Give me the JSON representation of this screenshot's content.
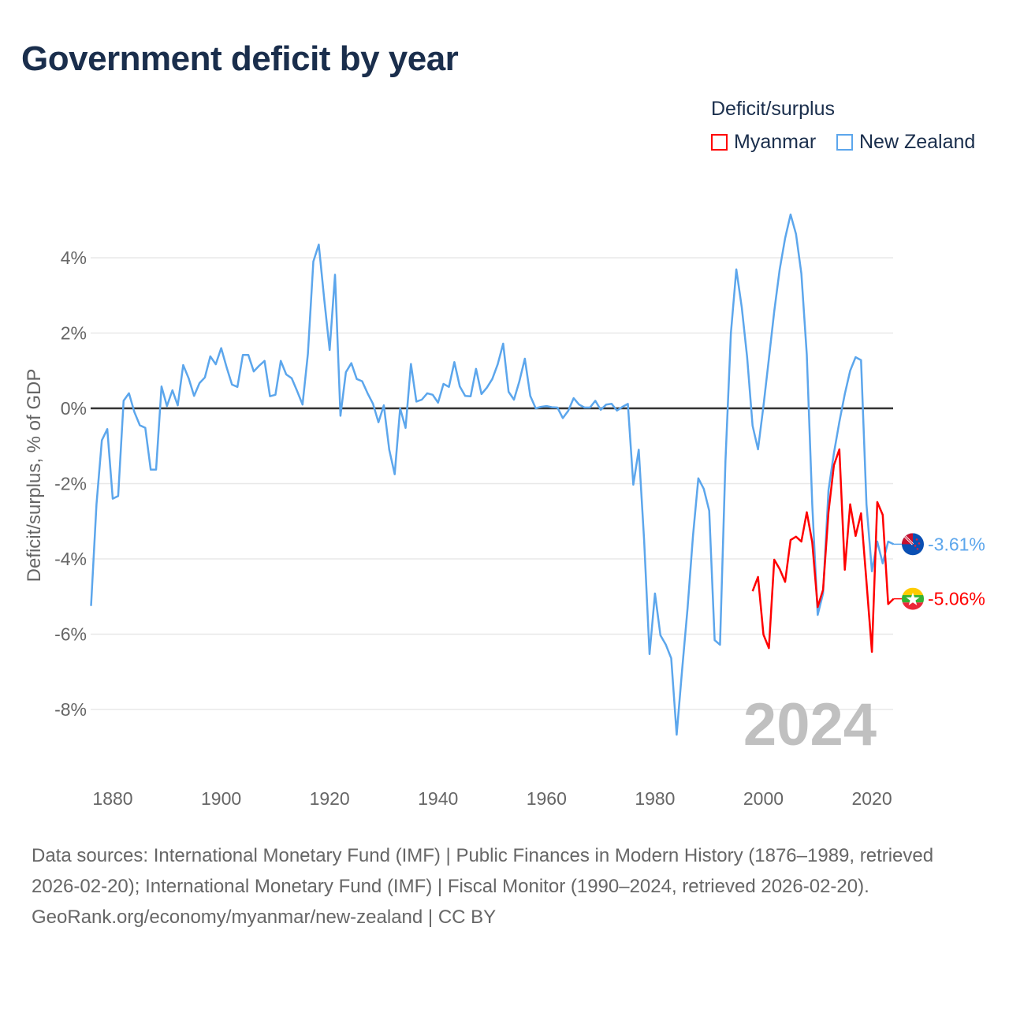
{
  "title": "Government deficit by year",
  "legend": {
    "title": "Deficit/surplus",
    "items": [
      {
        "name": "Myanmar",
        "color": "#ff0000"
      },
      {
        "name": "New Zealand",
        "color": "#5ca6ec"
      }
    ]
  },
  "year_watermark": "2024",
  "footer": {
    "sources": "Data sources: International Monetary Fund (IMF) | Public Finances in Modern History (1876–1989, retrieved 2026-02-20); International Monetary Fund (IMF) | Fiscal Monitor (1990–2024, retrieved 2026-02-20).",
    "credit": "GeoRank.org/economy/myanmar/new-zealand | CC BY"
  },
  "chart_data": {
    "type": "line",
    "title": "Government deficit by year",
    "xlabel": "",
    "ylabel": "Deficit/surplus, % of GDP",
    "xlim": [
      1876,
      2024
    ],
    "ylim": [
      -9.5,
      5.5
    ],
    "xticks": [
      1880,
      1900,
      1920,
      1940,
      1960,
      1980,
      2000,
      2020
    ],
    "yticks": [
      4,
      2,
      0,
      -2,
      -4,
      -6,
      -8
    ],
    "ytick_labels": [
      "4%",
      "2%",
      "0%",
      "-2%",
      "-4%",
      "-6%",
      "-8%"
    ],
    "grid": true,
    "legend_position": "top-right",
    "series": [
      {
        "name": "New Zealand",
        "color": "#5ca6ec",
        "start_year": 1876,
        "end_label": "-3.61%",
        "icon": "new-zealand-flag-icon",
        "values": [
          -5.25,
          -2.55,
          -0.85,
          -0.55,
          -2.4,
          -2.33,
          0.2,
          0.4,
          -0.1,
          -0.45,
          -0.52,
          -1.63,
          -1.63,
          0.58,
          0.06,
          0.48,
          0.08,
          1.15,
          0.8,
          0.33,
          0.67,
          0.82,
          1.38,
          1.17,
          1.6,
          1.09,
          0.63,
          0.57,
          1.42,
          1.42,
          0.98,
          1.13,
          1.26,
          0.32,
          0.36,
          1.26,
          0.9,
          0.8,
          0.46,
          0.1,
          1.45,
          3.9,
          4.35,
          2.9,
          1.55,
          3.55,
          -0.2,
          0.96,
          1.2,
          0.78,
          0.72,
          0.4,
          0.12,
          -0.37,
          0.08,
          -1.1,
          -1.75,
          0,
          -0.52,
          1.18,
          0.18,
          0.23,
          0.4,
          0.36,
          0.15,
          0.65,
          0.57,
          1.23,
          0.58,
          0.33,
          0.32,
          1.05,
          0.38,
          0.55,
          0.78,
          1.17,
          1.72,
          0.44,
          0.23,
          0.72,
          1.32,
          0.33,
          0,
          0.04,
          0.06,
          0.03,
          0.02,
          -0.26,
          -0.07,
          0.27,
          0.1,
          0.02,
          0.02,
          0.2,
          -0.04,
          0.1,
          0.12,
          -0.06,
          0.04,
          0.12,
          -2.03,
          -1.1,
          -3.5,
          -6.53,
          -4.92,
          -6.03,
          -6.28,
          -6.64,
          -8.67,
          -6.95,
          -5.32,
          -3.39,
          -1.86,
          -2.14,
          -2.72,
          -6.16,
          -6.28,
          -1.4,
          2.0,
          3.69,
          2.68,
          1.36,
          -0.46,
          -1.09,
          0.06,
          1.32,
          2.58,
          3.69,
          4.52,
          5.15,
          4.63,
          3.58,
          1.42,
          -2.55,
          -5.49,
          -4.92,
          -2.18,
          -1.19,
          -0.36,
          0.38,
          1.0,
          1.36,
          1.28,
          -2.55,
          -4.33,
          -3.54,
          -4.12,
          -3.54,
          -3.61
        ]
      },
      {
        "name": "Myanmar",
        "color": "#ff0000",
        "start_year": 1998,
        "end_label": "-5.06%",
        "icon": "myanmar-flag-icon",
        "values": [
          -4.86,
          -4.48,
          -6.01,
          -6.37,
          -4.02,
          -4.27,
          -4.61,
          -3.5,
          -3.41,
          -3.54,
          -2.76,
          -3.56,
          -5.28,
          -4.82,
          -2.76,
          -1.51,
          -1.09,
          -4.29,
          -2.55,
          -3.39,
          -2.79,
          -4.61,
          -6.47,
          -2.49,
          -2.83,
          -5.2,
          -5.06
        ]
      }
    ]
  }
}
